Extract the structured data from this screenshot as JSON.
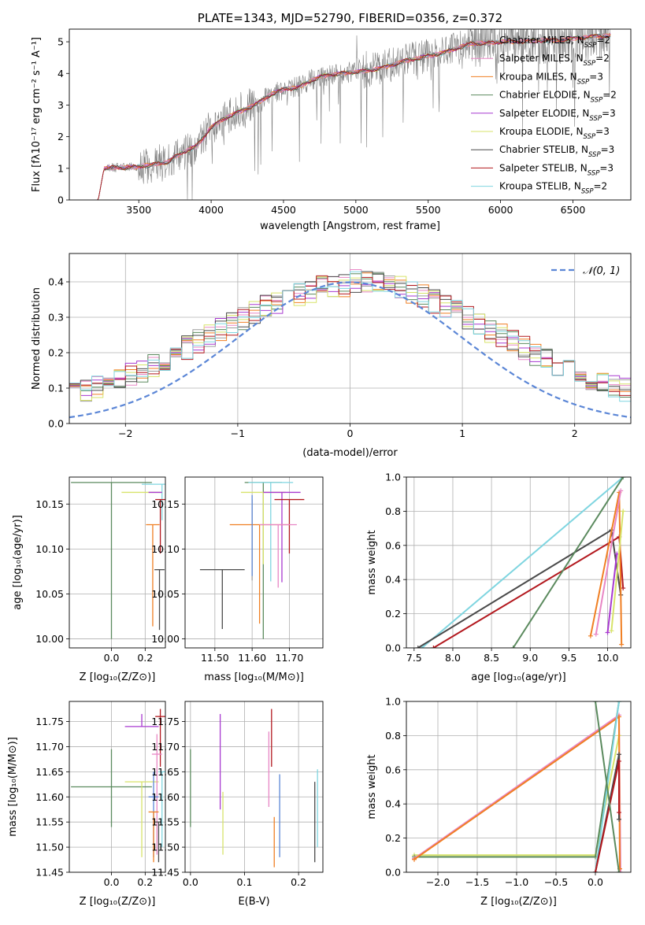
{
  "colors": {
    "chabrier_miles": "#9d9d9d",
    "salpeter_miles": "#e887c5",
    "kroupa_miles": "#f07f23",
    "chabrier_elodie": "#5b8a5e",
    "salpeter_elodie": "#a83ad0",
    "kroupa_elodie": "#d7e36a",
    "chabrier_stelib": "#4a4a4a",
    "salpeter_stelib": "#b3191f",
    "kroupa_stelib": "#7fd5e0",
    "gaussian": "#5b86d6",
    "data": "#808080",
    "grid": "#b0b0b0"
  },
  "chart_data": [
    {
      "id": "spectrum",
      "type": "line",
      "title": "PLATE=1343, MJD=52790, FIBERID=0356, z=0.372",
      "xlabel": "wavelength [Angstrom, rest frame]",
      "ylabel": "Flux [fλ10⁻¹⁷ erg cm⁻² s⁻¹ A⁻¹]",
      "xlim": [
        3020,
        6900
      ],
      "ylim": [
        0,
        5.4
      ],
      "xticks": [
        3500,
        4000,
        4500,
        5000,
        5500,
        6000,
        6500
      ],
      "yticks": [
        0,
        1,
        2,
        3,
        4,
        5
      ],
      "grid": false,
      "legend_position": "top-right",
      "continuum": {
        "x": [
          3220,
          3260,
          3500,
          3700,
          3800,
          3900,
          4000,
          4100,
          4200,
          4300,
          4400,
          4500,
          4600,
          4700,
          4800,
          4900,
          5000,
          5100,
          5200,
          5300,
          5400,
          5500,
          5600,
          5700,
          5800,
          5900,
          6000,
          6100,
          6200,
          6300,
          6400,
          6500,
          6600,
          6750
        ],
        "y": [
          0.0,
          1.0,
          1.05,
          1.2,
          1.5,
          1.7,
          2.3,
          2.6,
          2.8,
          3.0,
          3.3,
          3.5,
          3.55,
          3.8,
          3.95,
          4.0,
          4.05,
          4.1,
          4.2,
          4.35,
          4.45,
          4.55,
          4.65,
          4.8,
          4.95,
          4.95,
          5.0,
          5.0,
          5.02,
          5.05,
          5.05,
          5.1,
          5.15,
          5.2
        ]
      },
      "legend": [
        {
          "label": "Chabrier MILES, N",
          "sub": "SSP",
          "n": "=2",
          "color_key": "chabrier_miles"
        },
        {
          "label": "Salpeter MILES, N",
          "sub": "SSP",
          "n": "=2",
          "color_key": "salpeter_miles"
        },
        {
          "label": "Kroupa MILES, N",
          "sub": "SSP",
          "n": "=3",
          "color_key": "kroupa_miles"
        },
        {
          "label": "Chabrier ELODIE, N",
          "sub": "SSP",
          "n": "=2",
          "color_key": "chabrier_elodie"
        },
        {
          "label": "Salpeter ELODIE, N",
          "sub": "SSP",
          "n": "=3",
          "color_key": "salpeter_elodie"
        },
        {
          "label": "Kroupa ELODIE, N",
          "sub": "SSP",
          "n": "=3",
          "color_key": "kroupa_elodie"
        },
        {
          "label": "Chabrier STELIB, N",
          "sub": "SSP",
          "n": "=3",
          "color_key": "chabrier_stelib"
        },
        {
          "label": "Salpeter STELIB, N",
          "sub": "SSP",
          "n": "=3",
          "color_key": "salpeter_stelib"
        },
        {
          "label": "Kroupa STELIB, N",
          "sub": "SSP",
          "n": "=2",
          "color_key": "kroupa_stelib"
        }
      ]
    },
    {
      "id": "residuals",
      "type": "histogram",
      "xlabel": "(data-model)/error",
      "ylabel": "Normed distribution",
      "xlim": [
        -2.5,
        2.5
      ],
      "ylim": [
        0,
        0.48
      ],
      "xticks": [
        -2,
        -1,
        0,
        1,
        2
      ],
      "yticks": [
        0.0,
        0.1,
        0.2,
        0.3,
        0.4
      ],
      "grid": true,
      "legend_position": "top-right",
      "gaussian_label": "𝒩(0, 1)",
      "bin_width": 0.1
    },
    {
      "id": "age_vs_Z",
      "type": "errorbar",
      "xlabel": "Z [log₁₀(Z/Z⊙)]",
      "ylabel": "age  [log₁₀(age/yr)]",
      "xlim": [
        -0.25,
        0.32
      ],
      "ylim": [
        9.99,
        10.18
      ],
      "xticks": [
        0.0,
        0.2
      ],
      "yticks": [
        10.0,
        10.05,
        10.1,
        10.15
      ],
      "grid": true,
      "points": [
        {
          "x": 0.0,
          "y": 10.174,
          "xerr": 0.24,
          "yerr_lo": 0.174,
          "yerr_hi": 0.0,
          "color_key": "chabrier_elodie"
        },
        {
          "x": 0.3,
          "y": 10.172,
          "xerr": 0.12,
          "yerr_lo": 0.04,
          "yerr_hi": 0.0,
          "color_key": "kroupa_stelib"
        },
        {
          "x": 0.18,
          "y": 10.163,
          "xerr": 0.12,
          "yerr_lo": 0.0,
          "yerr_hi": 0.0,
          "color_key": "kroupa_elodie"
        },
        {
          "x": 0.26,
          "y": 10.163,
          "xerr": 0.04,
          "yerr_lo": 0.0,
          "yerr_hi": 0.0,
          "color_key": "salpeter_elodie"
        },
        {
          "x": 0.29,
          "y": 10.155,
          "xerr": 0.03,
          "yerr_lo": 0.06,
          "yerr_hi": 0.0,
          "color_key": "salpeter_stelib"
        },
        {
          "x": 0.245,
          "y": 10.127,
          "xerr": 0.04,
          "yerr_lo": 0.113,
          "yerr_hi": 0.0,
          "color_key": "kroupa_miles"
        },
        {
          "x": 0.285,
          "y": 10.077,
          "xerr": 0.03,
          "yerr_lo": 0.067,
          "yerr_hi": 0.0,
          "color_key": "chabrier_stelib"
        }
      ]
    },
    {
      "id": "age_vs_mass",
      "type": "errorbar",
      "xlabel": "mass [log₁₀(M/M⊙)]",
      "ylabel": "",
      "xlim": [
        11.42,
        11.79
      ],
      "ylim": [
        9.99,
        10.18
      ],
      "xticks": [
        11.5,
        11.6,
        11.7
      ],
      "yticks": [
        10.0,
        10.05,
        10.1,
        10.15
      ],
      "grid": true,
      "points": [
        {
          "x": 11.63,
          "y": 10.174,
          "xerr": 0.05,
          "yerr_lo": 0.174,
          "yerr_hi": 0.0,
          "color_key": "chabrier_elodie"
        },
        {
          "x": 11.65,
          "y": 10.174,
          "xerr": 0.06,
          "yerr_lo": 0.11,
          "yerr_hi": 0.0,
          "color_key": "kroupa_stelib"
        },
        {
          "x": 11.63,
          "y": 10.163,
          "xerr": 0.06,
          "yerr_lo": 0.08,
          "yerr_hi": 0.0,
          "color_key": "kroupa_elodie"
        },
        {
          "x": 11.68,
          "y": 10.163,
          "xerr": 0.05,
          "yerr_lo": 0.1,
          "yerr_hi": 0.0,
          "color_key": "salpeter_elodie"
        },
        {
          "x": 11.7,
          "y": 10.155,
          "xerr": 0.04,
          "yerr_lo": 0.06,
          "yerr_hi": 0.0,
          "color_key": "salpeter_stelib"
        },
        {
          "x": 11.6,
          "y": 10.155,
          "xerr": 0.0,
          "yerr_lo": 0.09,
          "yerr_hi": 0.0,
          "color_key": "chabrier_miles"
        },
        {
          "x": 11.62,
          "y": 10.127,
          "xerr": 0.08,
          "yerr_lo": 0.11,
          "yerr_hi": 0.0,
          "color_key": "kroupa_miles"
        },
        {
          "x": 11.67,
          "y": 10.127,
          "xerr": 0.05,
          "yerr_lo": 0.07,
          "yerr_hi": 0.0,
          "color_key": "salpeter_miles"
        },
        {
          "x": 11.52,
          "y": 10.077,
          "xerr": 0.06,
          "yerr_lo": 0.066,
          "yerr_hi": 0.0,
          "color_key": "chabrier_stelib"
        },
        {
          "x": 11.6,
          "y": 10.16,
          "xerr": 0.0,
          "yerr_lo": 0.09,
          "yerr_hi": 0.0,
          "color_key": "gaussian"
        }
      ]
    },
    {
      "id": "weight_vs_age",
      "type": "line",
      "xlabel": "age  [log₁₀(age/yr)]",
      "ylabel": "mass weight",
      "xlim": [
        7.4,
        10.3
      ],
      "ylim": [
        0,
        1.0
      ],
      "xticks": [
        7.5,
        8.0,
        8.5,
        9.0,
        9.5,
        10.0
      ],
      "yticks": [
        0.0,
        0.2,
        0.4,
        0.6,
        0.8,
        1.0
      ],
      "grid": true,
      "series": [
        {
          "color_key": "kroupa_stelib",
          "x": [
            7.6,
            10.2
          ],
          "y": [
            0.0,
            1.0
          ]
        },
        {
          "color_key": "chabrier_stelib",
          "x": [
            7.55,
            10.05,
            10.17
          ],
          "y": [
            0.0,
            0.69,
            0.31
          ]
        },
        {
          "color_key": "salpeter_stelib",
          "x": [
            7.75,
            10.15,
            10.2
          ],
          "y": [
            0.0,
            0.65,
            0.35
          ]
        },
        {
          "color_key": "chabrier_elodie",
          "x": [
            8.78,
            10.2
          ],
          "y": [
            0.0,
            1.0
          ]
        },
        {
          "color_key": "kroupa_miles",
          "x": [
            9.78,
            10.15,
            10.18
          ],
          "y": [
            0.07,
            0.91,
            0.02
          ]
        },
        {
          "color_key": "salpeter_miles",
          "x": [
            9.85,
            10.17
          ],
          "y": [
            0.08,
            0.92
          ]
        },
        {
          "color_key": "salpeter_elodie",
          "x": [
            10.0,
            10.12
          ],
          "y": [
            0.09,
            0.55
          ]
        },
        {
          "color_key": "kroupa_elodie",
          "x": [
            10.05,
            10.2
          ],
          "y": [
            0.1,
            0.8
          ]
        }
      ]
    },
    {
      "id": "mass_vs_Z",
      "type": "errorbar",
      "xlabel": "Z [log₁₀(Z/Z⊙)]",
      "ylabel": "mass [log₁₀(M/M⊙)]",
      "xlim": [
        -0.25,
        0.32
      ],
      "ylim": [
        11.45,
        11.79
      ],
      "xticks": [
        0.0,
        0.2
      ],
      "yticks": [
        11.45,
        11.5,
        11.55,
        11.6,
        11.65,
        11.7,
        11.75
      ],
      "grid": true,
      "points": [
        {
          "x": 0.0,
          "y": 11.62,
          "xerr": 0.24,
          "yerr_lo": 0.08,
          "yerr_hi": 0.075,
          "color_key": "chabrier_elodie"
        },
        {
          "x": 0.18,
          "y": 11.63,
          "xerr": 0.1,
          "yerr_lo": 0.15,
          "yerr_hi": 0.0,
          "color_key": "kroupa_elodie"
        },
        {
          "x": 0.18,
          "y": 11.74,
          "xerr": 0.1,
          "yerr_lo": 0.0,
          "yerr_hi": 0.025,
          "color_key": "salpeter_elodie"
        },
        {
          "x": 0.29,
          "y": 11.76,
          "xerr": 0.03,
          "yerr_lo": 0.1,
          "yerr_hi": 0.015,
          "color_key": "salpeter_stelib"
        },
        {
          "x": 0.27,
          "y": 11.685,
          "xerr": 0.03,
          "yerr_lo": 0.2,
          "yerr_hi": 0.04,
          "color_key": "salpeter_miles"
        },
        {
          "x": 0.25,
          "y": 11.6,
          "xerr": 0.03,
          "yerr_lo": 0.12,
          "yerr_hi": 0.05,
          "color_key": "gaussian"
        },
        {
          "x": 0.25,
          "y": 11.57,
          "xerr": 0.03,
          "yerr_lo": 0.1,
          "yerr_hi": 0.0,
          "color_key": "kroupa_miles"
        },
        {
          "x": 0.28,
          "y": 11.55,
          "xerr": 0.02,
          "yerr_lo": 0.08,
          "yerr_hi": 0.0,
          "color_key": "chabrier_stelib"
        },
        {
          "x": 0.3,
          "y": 11.65,
          "xerr": 0.02,
          "yerr_lo": 0.15,
          "yerr_hi": 0.0,
          "color_key": "kroupa_stelib"
        }
      ]
    },
    {
      "id": "mass_vs_ebv",
      "type": "errorbar",
      "xlabel": "E(B-V)",
      "ylabel": "",
      "xlim": [
        -0.01,
        0.245
      ],
      "ylim": [
        11.45,
        11.79
      ],
      "xticks": [
        0.0,
        0.1,
        0.2
      ],
      "yticks": [
        11.45,
        11.5,
        11.55,
        11.6,
        11.65,
        11.7,
        11.75
      ],
      "grid": true,
      "points": [
        {
          "x": 0.0,
          "y": 11.62,
          "xerr": 0.0,
          "yerr_lo": 0.08,
          "yerr_hi": 0.075,
          "color_key": "chabrier_elodie"
        },
        {
          "x": 0.055,
          "y": 11.67,
          "xerr": 0.0,
          "yerr_lo": 0.095,
          "yerr_hi": 0.095,
          "color_key": "salpeter_elodie"
        },
        {
          "x": 0.06,
          "y": 11.56,
          "xerr": 0.0,
          "yerr_lo": 0.075,
          "yerr_hi": 0.05,
          "color_key": "kroupa_elodie"
        },
        {
          "x": 0.145,
          "y": 11.66,
          "xerr": 0.0,
          "yerr_lo": 0.08,
          "yerr_hi": 0.07,
          "color_key": "salpeter_miles"
        },
        {
          "x": 0.15,
          "y": 11.72,
          "xerr": 0.0,
          "yerr_lo": 0.06,
          "yerr_hi": 0.055,
          "color_key": "salpeter_stelib"
        },
        {
          "x": 0.155,
          "y": 11.52,
          "xerr": 0.0,
          "yerr_lo": 0.06,
          "yerr_hi": 0.04,
          "color_key": "kroupa_miles"
        },
        {
          "x": 0.165,
          "y": 11.56,
          "xerr": 0.0,
          "yerr_lo": 0.08,
          "yerr_hi": 0.085,
          "color_key": "gaussian"
        },
        {
          "x": 0.23,
          "y": 11.55,
          "xerr": 0.0,
          "yerr_lo": 0.08,
          "yerr_hi": 0.08,
          "color_key": "chabrier_stelib"
        },
        {
          "x": 0.235,
          "y": 11.56,
          "xerr": 0.0,
          "yerr_lo": 0.06,
          "yerr_hi": 0.095,
          "color_key": "kroupa_stelib"
        }
      ]
    },
    {
      "id": "weight_vs_Z",
      "type": "line",
      "xlabel": "Z [log₁₀(Z/Z⊙)]",
      "ylabel": "mass weight",
      "xlim": [
        -2.4,
        0.45
      ],
      "ylim": [
        0,
        1.0
      ],
      "xticks": [
        -2.0,
        -1.5,
        -1.0,
        -0.5,
        0.0
      ],
      "yticks": [
        0.0,
        0.2,
        0.4,
        0.6,
        0.8,
        1.0
      ],
      "grid": true,
      "series": [
        {
          "color_key": "kroupa_elodie",
          "x": [
            -2.3,
            0.0,
            0.3
          ],
          "y": [
            0.1,
            0.1,
            0.8
          ]
        },
        {
          "color_key": "chabrier_elodie",
          "x": [
            -2.3,
            0.0,
            0.3
          ],
          "y": [
            0.09,
            0.09,
            1.0
          ]
        },
        {
          "color_key": "salpeter_miles",
          "x": [
            -2.3,
            0.3,
            0.32
          ],
          "y": [
            0.08,
            0.92,
            0.0
          ]
        },
        {
          "color_key": "kroupa_miles",
          "x": [
            -2.3,
            0.3,
            0.31
          ],
          "y": [
            0.075,
            0.91,
            0.02
          ]
        },
        {
          "color_key": "kroupa_stelib",
          "x": [
            0.0,
            0.3
          ],
          "y": [
            0.0,
            1.0
          ]
        },
        {
          "color_key": "chabrier_stelib",
          "x": [
            0.0,
            0.3,
            0.3
          ],
          "y": [
            0.0,
            0.69,
            0.31
          ]
        },
        {
          "color_key": "salpeter_stelib",
          "x": [
            0.0,
            0.3,
            0.3
          ],
          "y": [
            0.0,
            0.65,
            0.35
          ]
        },
        {
          "color_key": "chabrier_elodie",
          "x": [
            0.0,
            0.3
          ],
          "y": [
            1.0,
            0.0
          ]
        }
      ]
    }
  ]
}
